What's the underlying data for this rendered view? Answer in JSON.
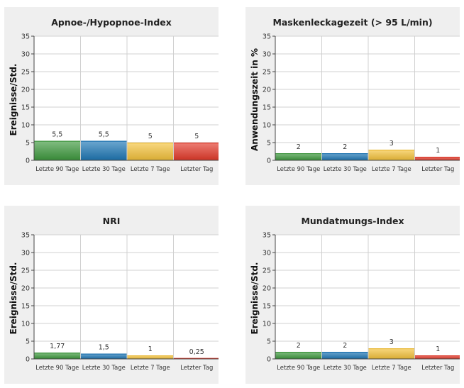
{
  "colors": {
    "series": [
      "#3f9b3f",
      "#1f78b7",
      "#f5c33b",
      "#e53a2a"
    ],
    "panel_bg": "#efefef",
    "plot_bg": "#ffffff",
    "grid": "#d0d0d0"
  },
  "chart_data": [
    {
      "type": "bar",
      "title": "Apnoe-/Hypopnoe-Index",
      "ylabel": "Ereignisse/Std.",
      "categories": [
        "Letzte 90 Tage",
        "Letzte 30 Tage",
        "Letzte 7 Tage",
        "Letzter Tag"
      ],
      "values": [
        5.5,
        5.5,
        5,
        5
      ],
      "value_labels": [
        "5,5",
        "5,5",
        "5",
        "5"
      ],
      "ylim": [
        0,
        35
      ],
      "yticks": [
        0,
        5,
        10,
        15,
        20,
        25,
        30,
        35
      ],
      "grid": true
    },
    {
      "type": "bar",
      "title": "Maskenleckagezeit (> 95 L/min)",
      "ylabel": "Anwendungszeit in %",
      "categories": [
        "Letzte 90 Tage",
        "Letzte 30 Tage",
        "Letzte 7 Tage",
        "Letzter Tag"
      ],
      "values": [
        2,
        2,
        3,
        1
      ],
      "value_labels": [
        "2",
        "2",
        "3",
        "1"
      ],
      "ylim": [
        0,
        35
      ],
      "yticks": [
        0,
        5,
        10,
        15,
        20,
        25,
        30,
        35
      ],
      "grid": true
    },
    {
      "type": "bar",
      "title": "NRI",
      "ylabel": "Ereignisse/Std.",
      "categories": [
        "Letzte 90 Tage",
        "Letzte 30 Tage",
        "Letzte 7 Tage",
        "Letzter Tag"
      ],
      "values": [
        1.77,
        1.5,
        1,
        0.25
      ],
      "value_labels": [
        "1,77",
        "1,5",
        "1",
        "0,25"
      ],
      "ylim": [
        0,
        35
      ],
      "yticks": [
        0,
        5,
        10,
        15,
        20,
        25,
        30,
        35
      ],
      "grid": true
    },
    {
      "type": "bar",
      "title": "Mundatmungs-Index",
      "ylabel": "Ereignisse/Std.",
      "categories": [
        "Letzte 90 Tage",
        "Letzte 30 Tage",
        "Letzte 7 Tage",
        "Letzter Tag"
      ],
      "values": [
        2,
        2,
        3,
        1
      ],
      "value_labels": [
        "2",
        "2",
        "3",
        "1"
      ],
      "ylim": [
        0,
        35
      ],
      "yticks": [
        0,
        5,
        10,
        15,
        20,
        25,
        30,
        35
      ],
      "grid": true
    }
  ]
}
